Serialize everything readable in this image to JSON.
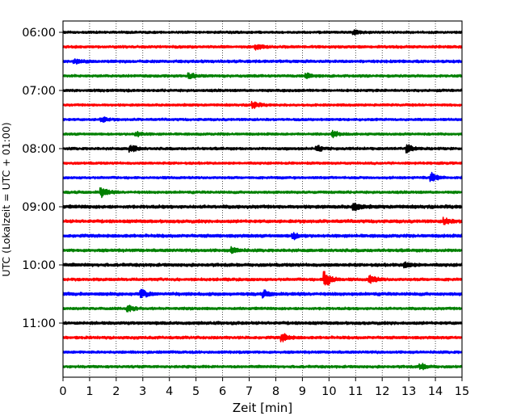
{
  "chart_data": {
    "type": "line",
    "title": "",
    "xlabel": "Zeit  [min]",
    "ylabel": "UTC (Lokalzeit = UTC + 01:00)",
    "xlim": [
      0,
      15
    ],
    "x_ticks": [
      "0",
      "1",
      "2",
      "3",
      "4",
      "5",
      "6",
      "7",
      "8",
      "9",
      "10",
      "11",
      "12",
      "13",
      "14",
      "15"
    ],
    "y_ticks": [
      "06:00",
      "07:00",
      "08:00",
      "09:00",
      "10:00",
      "11:00"
    ],
    "vertical_grid": "dotted at every minute",
    "trace_interval_minutes": 15,
    "trace_colors": [
      "#000000",
      "#ff0000",
      "#0000ff",
      "#008000"
    ],
    "trace_start_times": [
      "06:00",
      "06:15",
      "06:30",
      "06:45",
      "07:00",
      "07:15",
      "07:30",
      "07:45",
      "08:00",
      "08:15",
      "08:30",
      "08:45",
      "09:00",
      "09:15",
      "09:30",
      "09:45",
      "10:00",
      "10:15",
      "10:30",
      "10:45",
      "11:00",
      "11:15",
      "11:30",
      "11:45"
    ],
    "trace_noise": [
      1.4,
      1.5,
      1.6,
      1.5,
      1.5,
      1.4,
      1.4,
      1.4,
      1.5,
      1.4,
      1.4,
      1.5,
      1.9,
      1.8,
      1.8,
      1.7,
      1.8,
      1.6,
      1.8,
      1.5,
      1.7,
      1.6,
      1.5,
      1.5
    ],
    "events": [
      {
        "trace": 0,
        "t": 11.0,
        "amp": 2.2
      },
      {
        "trace": 1,
        "t": 7.3,
        "amp": 2.5
      },
      {
        "trace": 2,
        "t": 0.5,
        "amp": 2.5
      },
      {
        "trace": 3,
        "t": 4.8,
        "amp": 3
      },
      {
        "trace": 3,
        "t": 9.2,
        "amp": 2.5
      },
      {
        "trace": 5,
        "t": 7.2,
        "amp": 3.5
      },
      {
        "trace": 6,
        "t": 1.5,
        "amp": 2.5
      },
      {
        "trace": 7,
        "t": 2.8,
        "amp": 2.5
      },
      {
        "trace": 7,
        "t": 10.2,
        "amp": 3
      },
      {
        "trace": 8,
        "t": 2.6,
        "amp": 4
      },
      {
        "trace": 8,
        "t": 9.6,
        "amp": 3
      },
      {
        "trace": 8,
        "t": 13.0,
        "amp": 4
      },
      {
        "trace": 10,
        "t": 13.9,
        "amp": 5
      },
      {
        "trace": 11,
        "t": 1.5,
        "amp": 5
      },
      {
        "trace": 12,
        "t": 11.0,
        "amp": 4
      },
      {
        "trace": 13,
        "t": 14.4,
        "amp": 3
      },
      {
        "trace": 14,
        "t": 8.7,
        "amp": 3
      },
      {
        "trace": 15,
        "t": 6.4,
        "amp": 3
      },
      {
        "trace": 16,
        "t": 12.9,
        "amp": 3
      },
      {
        "trace": 17,
        "t": 9.9,
        "amp": 9
      },
      {
        "trace": 17,
        "t": 11.6,
        "amp": 4
      },
      {
        "trace": 18,
        "t": 3.0,
        "amp": 4
      },
      {
        "trace": 18,
        "t": 7.6,
        "amp": 3
      },
      {
        "trace": 19,
        "t": 2.5,
        "amp": 3
      },
      {
        "trace": 21,
        "t": 8.3,
        "amp": 4
      },
      {
        "trace": 23,
        "t": 13.5,
        "amp": 3
      }
    ]
  }
}
